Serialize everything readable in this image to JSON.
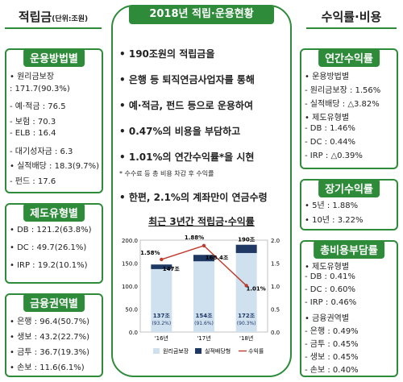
{
  "left": {
    "title": "적립금",
    "unit": "(단위:조원)",
    "method": {
      "caption": "운용방법별",
      "lines": [
        "• 원리금보장",
        "  : 171.7(90.3%)",
        "  - 예·적금 : 76.5",
        "  - 보험 : 70.3",
        "  - ELB : 16.4",
        "  - 대기성자금 : 6.3",
        "• 실적배당 : 18.3(9.7%)",
        "  - 펀드 : 17.6"
      ]
    },
    "system": {
      "caption": "제도유형별",
      "lines": [
        "• DB : 121.2(63.8%)",
        "• DC : 49.7(26.1%)",
        "• IRP : 19.2(10.1%)"
      ]
    },
    "sector": {
      "caption": "금융권역별",
      "lines": [
        "• 은행 : 96.4(50.7%)",
        "• 생보 : 43.2(22.7%)",
        "• 금투 : 36.7(19.3%)",
        "• 손보 : 11.6(6.1%)"
      ]
    }
  },
  "center": {
    "title": "2018년 적립·운용현황",
    "items": [
      "• 190조원의 적립금을",
      "• 은행 등 퇴직연금사업자를 통해",
      "• 예·적금, 펀드 등으로 운용하여",
      "• 0.47%의 비용을 부담하고",
      "• 1.01%의 연간수익률*을 시현",
      "* 수수료 등 총 비용 차감 후 수익률",
      "• 한편, 2.1%의 계좌만이 연금수령"
    ],
    "chart_title": "최근 3년간 적립금·수익률"
  },
  "chart_data": {
    "type": "bar",
    "categories": [
      "'16년",
      "'17년",
      "'18년"
    ],
    "series": [
      {
        "name": "원리금보장",
        "values": [
          137,
          154,
          172
        ]
      },
      {
        "name": "실적배당형",
        "values": [
          10,
          14,
          18
        ]
      },
      {
        "name": "수익률",
        "values": [
          1.58,
          1.88,
          1.01
        ]
      }
    ],
    "bar_labels": [
      "137조\n(93.2%)",
      "154조\n(91.6%)",
      "172조\n(90.3%)"
    ],
    "total_labels": [
      "147조",
      "168.4조",
      "190조"
    ],
    "rate_labels": [
      "1.58%",
      "1.88%",
      "1.01%"
    ],
    "y_left_ticks": [
      "200.0",
      "150.0",
      "100.0",
      "50.0",
      "0.0"
    ],
    "y_right_ticks": [
      "2.0",
      "1.5",
      "1.0",
      "0.5",
      "0.0"
    ],
    "ylim_left": [
      0,
      200
    ],
    "ylim_right": [
      0,
      2.0
    ],
    "colors": {
      "bar_main": "#cfe0ef",
      "bar_top": "#1f3864",
      "line": "#c0392b"
    }
  },
  "right": {
    "title": "수익률·비용",
    "annual": {
      "caption": "연간수익률",
      "lines": [
        "• 운용방법별",
        "  - 원리금보장 : 1.56%",
        "  - 실적배당 : △3.82%",
        "• 제도유형별",
        "  - DB : 1.46%",
        "  - DC : 0.44%",
        "  - IRP : △0.39%"
      ]
    },
    "longterm": {
      "caption": "장기수익률",
      "lines": [
        "• 5년 : 1.88%",
        "• 10년 : 3.22%"
      ]
    },
    "cost": {
      "caption": "총비용부담률",
      "lines": [
        "• 제도유형별",
        "  - DB : 0.41%",
        "  - DC : 0.60%",
        "  - IRP : 0.46%",
        "• 금융권역별",
        "  - 은행 : 0.49%",
        "  - 금투 : 0.45%",
        "  - 생보 : 0.45%",
        "  - 손보 : 0.40%"
      ]
    }
  }
}
